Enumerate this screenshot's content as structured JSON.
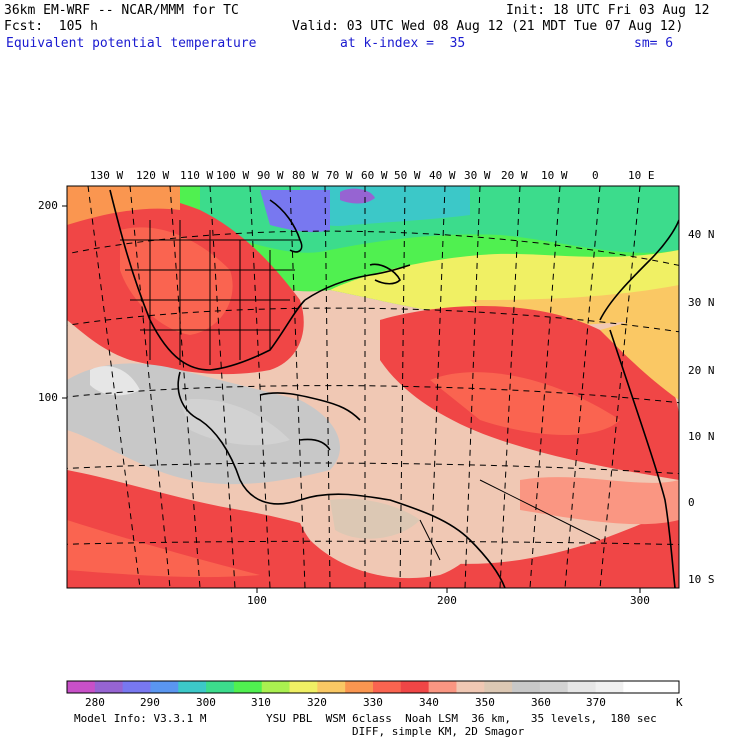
{
  "header": {
    "model_line": "36km EM-WRF -- NCAR/MMM for TC",
    "init": "Init: 18 UTC Fri 03 Aug 12",
    "forecast": "Fcst:  105 h",
    "valid": "Valid: 03 UTC Wed 08 Aug 12 (21 MDT Tue 07 Aug 12)",
    "field": "Equivalent potential temperature",
    "level": "at k-index =  35",
    "smoothing": "sm= 6"
  },
  "map": {
    "lon_labels": [
      "130 W",
      "120 W",
      "110 W",
      "100 W",
      "90 W",
      "80 W",
      "70 W",
      "60 W",
      "50 W",
      "40 W",
      "30 W",
      "20 W",
      "10 W",
      "0",
      "10 E"
    ],
    "lat_labels": [
      "40 N",
      "30 N",
      "20 N",
      "10 N",
      "0",
      "10 S"
    ],
    "grid_y_labels": [
      "200",
      "100"
    ],
    "grid_x_labels": [
      "100",
      "200",
      "300"
    ]
  },
  "colorbar": {
    "labels": [
      "280",
      "290",
      "300",
      "310",
      "320",
      "330",
      "340",
      "350",
      "360",
      "370"
    ],
    "unit": "K",
    "colors": [
      "#c850c8",
      "#9664d2",
      "#7878f0",
      "#5a96f0",
      "#3cc8c8",
      "#3cdc8c",
      "#50f050",
      "#aaf050",
      "#f0f064",
      "#fac864",
      "#fa9650",
      "#fa6450",
      "#f04646",
      "#fa9682",
      "#f0c8b4",
      "#dcc8b4",
      "#c8c8c8",
      "#d2d2d2",
      "#e6e6e6",
      "#f0f0f0",
      "#ffffff",
      "#ffffff"
    ]
  },
  "footer": {
    "model_info": "Model Info: V3.3.1 M",
    "physics": "YSU PBL  WSM 6class  Noah LSM  36 km,   35 levels,  180 sec",
    "diff": "DIFF, simple KM, 2D Smagor"
  }
}
